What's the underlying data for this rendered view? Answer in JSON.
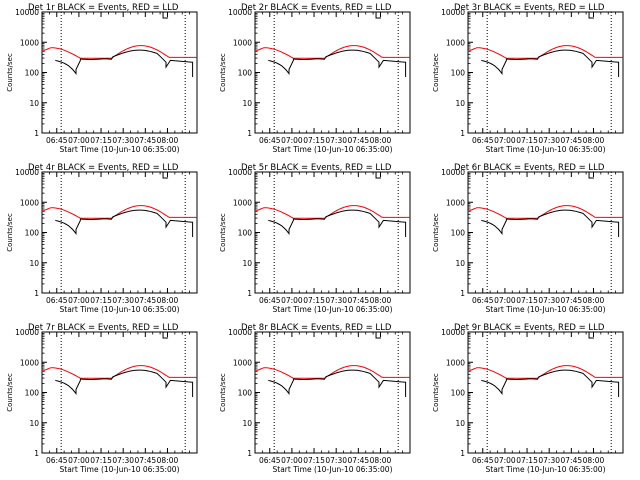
{
  "chart_data": [
    {
      "type": "line",
      "title": "Det 1r BLACK = Events, RED = LLD",
      "xlabel": "Start Time (10-Jun-10 06:35:00)",
      "ylabel": "Counts/sec",
      "x_ticks": [
        "06:45",
        "07:00",
        "07:15",
        "07:30",
        "07:45",
        "08:00"
      ],
      "y_ticks": [
        "1",
        "10",
        "100",
        "1000",
        "10000"
      ],
      "yscale": "log",
      "ylim": [
        1,
        10000
      ],
      "marker_label": "L",
      "series": [
        {
          "name": "Events",
          "color": "#000000"
        },
        {
          "name": "LLD",
          "color": "#ff0000"
        }
      ]
    },
    {
      "type": "line",
      "title": "Det 2r BLACK = Events, RED = LLD",
      "xlabel": "Start Time (10-Jun-10 06:35:00)",
      "ylabel": "Counts/sec",
      "x_ticks": [
        "06:45",
        "07:00",
        "07:15",
        "07:30",
        "07:45",
        "08:00"
      ],
      "y_ticks": [
        "1",
        "10",
        "100",
        "1000",
        "10000"
      ],
      "yscale": "log",
      "ylim": [
        1,
        10000
      ],
      "marker_label": "L",
      "series": [
        {
          "name": "Events",
          "color": "#000000"
        },
        {
          "name": "LLD",
          "color": "#ff0000"
        }
      ]
    },
    {
      "type": "line",
      "title": "Det 3r BLACK = Events, RED = LLD",
      "xlabel": "Start Time (10-Jun-10 06:35:00)",
      "ylabel": "Counts/sec",
      "x_ticks": [
        "06:45",
        "07:00",
        "07:15",
        "07:30",
        "07:45",
        "08:00"
      ],
      "y_ticks": [
        "1",
        "10",
        "100",
        "1000",
        "10000"
      ],
      "yscale": "log",
      "ylim": [
        1,
        10000
      ],
      "marker_label": "L",
      "series": [
        {
          "name": "Events",
          "color": "#000000"
        },
        {
          "name": "LLD",
          "color": "#ff0000"
        }
      ]
    },
    {
      "type": "line",
      "title": "Det 4r BLACK = Events, RED = LLD",
      "xlabel": "Start Time (10-Jun-10 06:35:00)",
      "ylabel": "Counts/sec",
      "x_ticks": [
        "06:45",
        "07:00",
        "07:15",
        "07:30",
        "07:45",
        "08:00"
      ],
      "y_ticks": [
        "1",
        "10",
        "100",
        "1000",
        "10000"
      ],
      "yscale": "log",
      "ylim": [
        1,
        10000
      ],
      "marker_label": "L",
      "series": [
        {
          "name": "Events",
          "color": "#000000"
        },
        {
          "name": "LLD",
          "color": "#ff0000"
        }
      ]
    },
    {
      "type": "line",
      "title": "Det 5r BLACK = Events, RED = LLD",
      "xlabel": "Start Time (10-Jun-10 06:35:00)",
      "ylabel": "Counts/sec",
      "x_ticks": [
        "06:45",
        "07:00",
        "07:15",
        "07:30",
        "07:45",
        "08:00"
      ],
      "y_ticks": [
        "1",
        "10",
        "100",
        "1000",
        "10000"
      ],
      "yscale": "log",
      "ylim": [
        1,
        10000
      ],
      "marker_label": "L",
      "series": [
        {
          "name": "Events",
          "color": "#000000"
        },
        {
          "name": "LLD",
          "color": "#ff0000"
        }
      ]
    },
    {
      "type": "line",
      "title": "Det 6r BLACK = Events, RED = LLD",
      "xlabel": "Start Time (10-Jun-10 06:35:00)",
      "ylabel": "Counts/sec",
      "x_ticks": [
        "06:45",
        "07:00",
        "07:15",
        "07:30",
        "07:45",
        "08:00"
      ],
      "y_ticks": [
        "1",
        "10",
        "100",
        "1000",
        "10000"
      ],
      "yscale": "log",
      "ylim": [
        1,
        10000
      ],
      "marker_label": "L",
      "series": [
        {
          "name": "Events",
          "color": "#000000"
        },
        {
          "name": "LLD",
          "color": "#ff0000"
        }
      ]
    },
    {
      "type": "line",
      "title": "Det 7r BLACK = Events, RED = LLD",
      "xlabel": "Start Time (10-Jun-10 06:35:00)",
      "ylabel": "Counts/sec",
      "x_ticks": [
        "06:45",
        "07:00",
        "07:15",
        "07:30",
        "07:45",
        "08:00"
      ],
      "y_ticks": [
        "1",
        "10",
        "100",
        "1000",
        "10000"
      ],
      "yscale": "log",
      "ylim": [
        1,
        10000
      ],
      "marker_label": "L",
      "series": [
        {
          "name": "Events",
          "color": "#000000"
        },
        {
          "name": "LLD",
          "color": "#ff0000"
        }
      ]
    },
    {
      "type": "line",
      "title": "Det 8r BLACK = Events, RED = LLD",
      "xlabel": "Start Time (10-Jun-10 06:35:00)",
      "ylabel": "Counts/sec",
      "x_ticks": [
        "06:45",
        "07:00",
        "07:15",
        "07:30",
        "07:45",
        "08:00"
      ],
      "y_ticks": [
        "1",
        "10",
        "100",
        "1000",
        "10000"
      ],
      "yscale": "log",
      "ylim": [
        1,
        10000
      ],
      "marker_label": "L",
      "series": [
        {
          "name": "Events",
          "color": "#000000"
        },
        {
          "name": "LLD",
          "color": "#ff0000"
        }
      ]
    },
    {
      "type": "line",
      "title": "Det 9r BLACK = Events, RED = LLD",
      "xlabel": "Start Time (10-Jun-10 06:35:00)",
      "ylabel": "Counts/sec",
      "x_ticks": [
        "06:45",
        "07:00",
        "07:15",
        "07:30",
        "07:45",
        "08:00"
      ],
      "y_ticks": [
        "1",
        "10",
        "100",
        "1000",
        "10000"
      ],
      "yscale": "log",
      "ylim": [
        1,
        10000
      ],
      "marker_label": "L",
      "series": [
        {
          "name": "Events",
          "color": "#000000"
        },
        {
          "name": "LLD",
          "color": "#ff0000"
        }
      ]
    }
  ]
}
